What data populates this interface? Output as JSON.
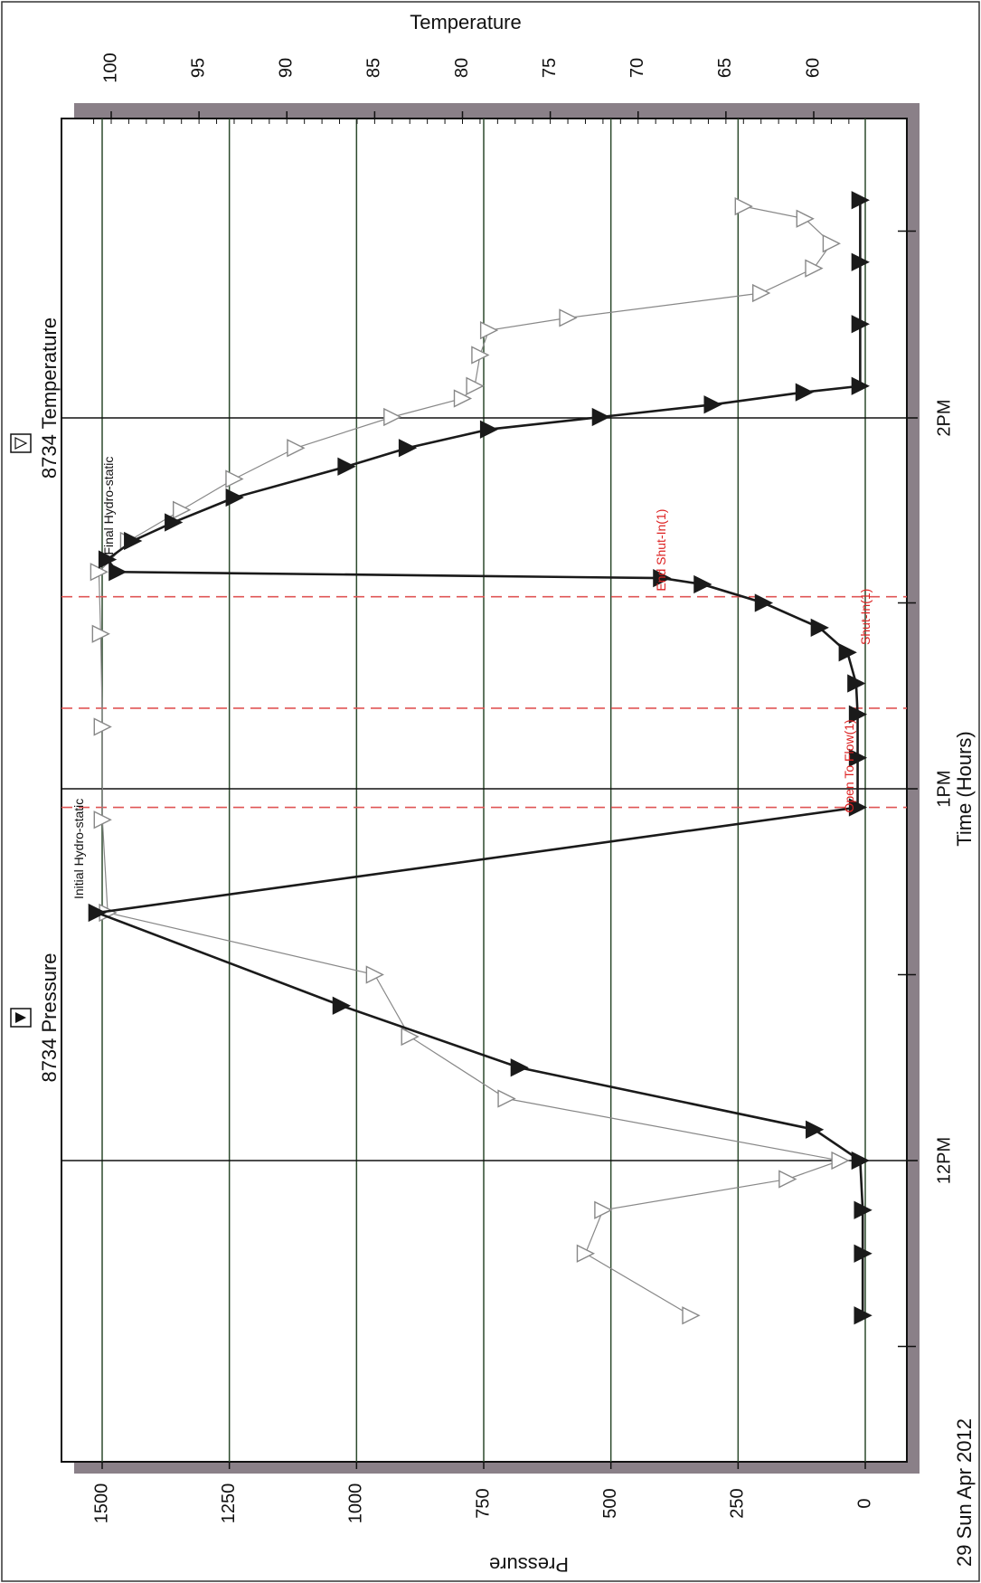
{
  "chart_data": {
    "type": "line",
    "title": "",
    "xlabel": "Time (Hours)",
    "x_ticks": [
      "12PM",
      "1PM",
      "2PM"
    ],
    "date_label": "29 Sun Apr 2012",
    "ylabel_left": "Pressure",
    "ylabel_right": "Temperature",
    "ylim_left": [
      -50,
      1600
    ],
    "yticks_left": [
      0,
      250,
      500,
      750,
      1000,
      1250,
      1500
    ],
    "ylim_right": [
      57,
      103
    ],
    "yticks_right": [
      60,
      65,
      70,
      75,
      80,
      85,
      90,
      95,
      100
    ],
    "grid": true,
    "series": [
      {
        "name": "8734 Pressure",
        "axis": "left",
        "color": "#1a1a1a",
        "marker": "filled-triangle",
        "points": [
          [
            "11:35",
            5
          ],
          [
            "11:45",
            5
          ],
          [
            "11:52",
            5
          ],
          [
            "12:00",
            10
          ],
          [
            "12:05",
            100
          ],
          [
            "12:15",
            680
          ],
          [
            "12:25",
            1030
          ],
          [
            "12:40",
            1510
          ],
          [
            "12:57",
            15
          ],
          [
            "13:05",
            15
          ],
          [
            "13:12",
            15
          ],
          [
            "13:17",
            18
          ],
          [
            "13:22",
            35
          ],
          [
            "13:26",
            90
          ],
          [
            "13:30",
            200
          ],
          [
            "13:33",
            320
          ],
          [
            "13:34",
            400
          ],
          [
            "13:35",
            1470
          ],
          [
            "13:37",
            1490
          ],
          [
            "13:40",
            1440
          ],
          [
            "13:43",
            1360
          ],
          [
            "13:47",
            1240
          ],
          [
            "13:52",
            1020
          ],
          [
            "13:55",
            900
          ],
          [
            "13:58",
            740
          ],
          [
            "14:00",
            520
          ],
          [
            "14:02",
            300
          ],
          [
            "14:04",
            120
          ],
          [
            "14:05",
            10
          ],
          [
            "14:15",
            10
          ],
          [
            "14:25",
            10
          ],
          [
            "14:35",
            10
          ]
        ]
      },
      {
        "name": "8734 Temperature",
        "axis": "right",
        "color": "#888888",
        "marker": "open-triangle",
        "points": [
          [
            "11:35",
            67.0
          ],
          [
            "11:45",
            73.0
          ],
          [
            "11:52",
            72.0
          ],
          [
            "11:57",
            61.5
          ],
          [
            "12:00",
            58.5
          ],
          [
            "12:10",
            77.5
          ],
          [
            "12:20",
            83.0
          ],
          [
            "12:30",
            85.0
          ],
          [
            "12:40",
            100.2
          ],
          [
            "12:55",
            100.5
          ],
          [
            "13:10",
            100.5
          ],
          [
            "13:25",
            100.6
          ],
          [
            "13:35",
            100.7
          ],
          [
            "13:40",
            99.0
          ],
          [
            "13:45",
            96.0
          ],
          [
            "13:50",
            93.0
          ],
          [
            "13:55",
            89.5
          ],
          [
            "14:00",
            84.0
          ],
          [
            "14:03",
            80.0
          ],
          [
            "14:05",
            79.3
          ],
          [
            "14:10",
            79.0
          ],
          [
            "14:14",
            78.5
          ],
          [
            "14:16",
            74.0
          ],
          [
            "14:20",
            63.0
          ],
          [
            "14:24",
            60.0
          ],
          [
            "14:28",
            59.0
          ],
          [
            "14:32",
            60.5
          ],
          [
            "14:34",
            64.0
          ]
        ]
      }
    ],
    "event_markers": [
      {
        "time": "12:57",
        "label": "Open To Flow(1)"
      },
      {
        "time": "13:13",
        "label": "Shut-In(1)"
      },
      {
        "time": "13:31",
        "label": "End Shut-In(1)"
      }
    ],
    "point_annotations": [
      {
        "time": "12:40",
        "label": "Initial Hydro-static"
      },
      {
        "time": "13:37",
        "label": "Final Hydro-static"
      }
    ]
  }
}
